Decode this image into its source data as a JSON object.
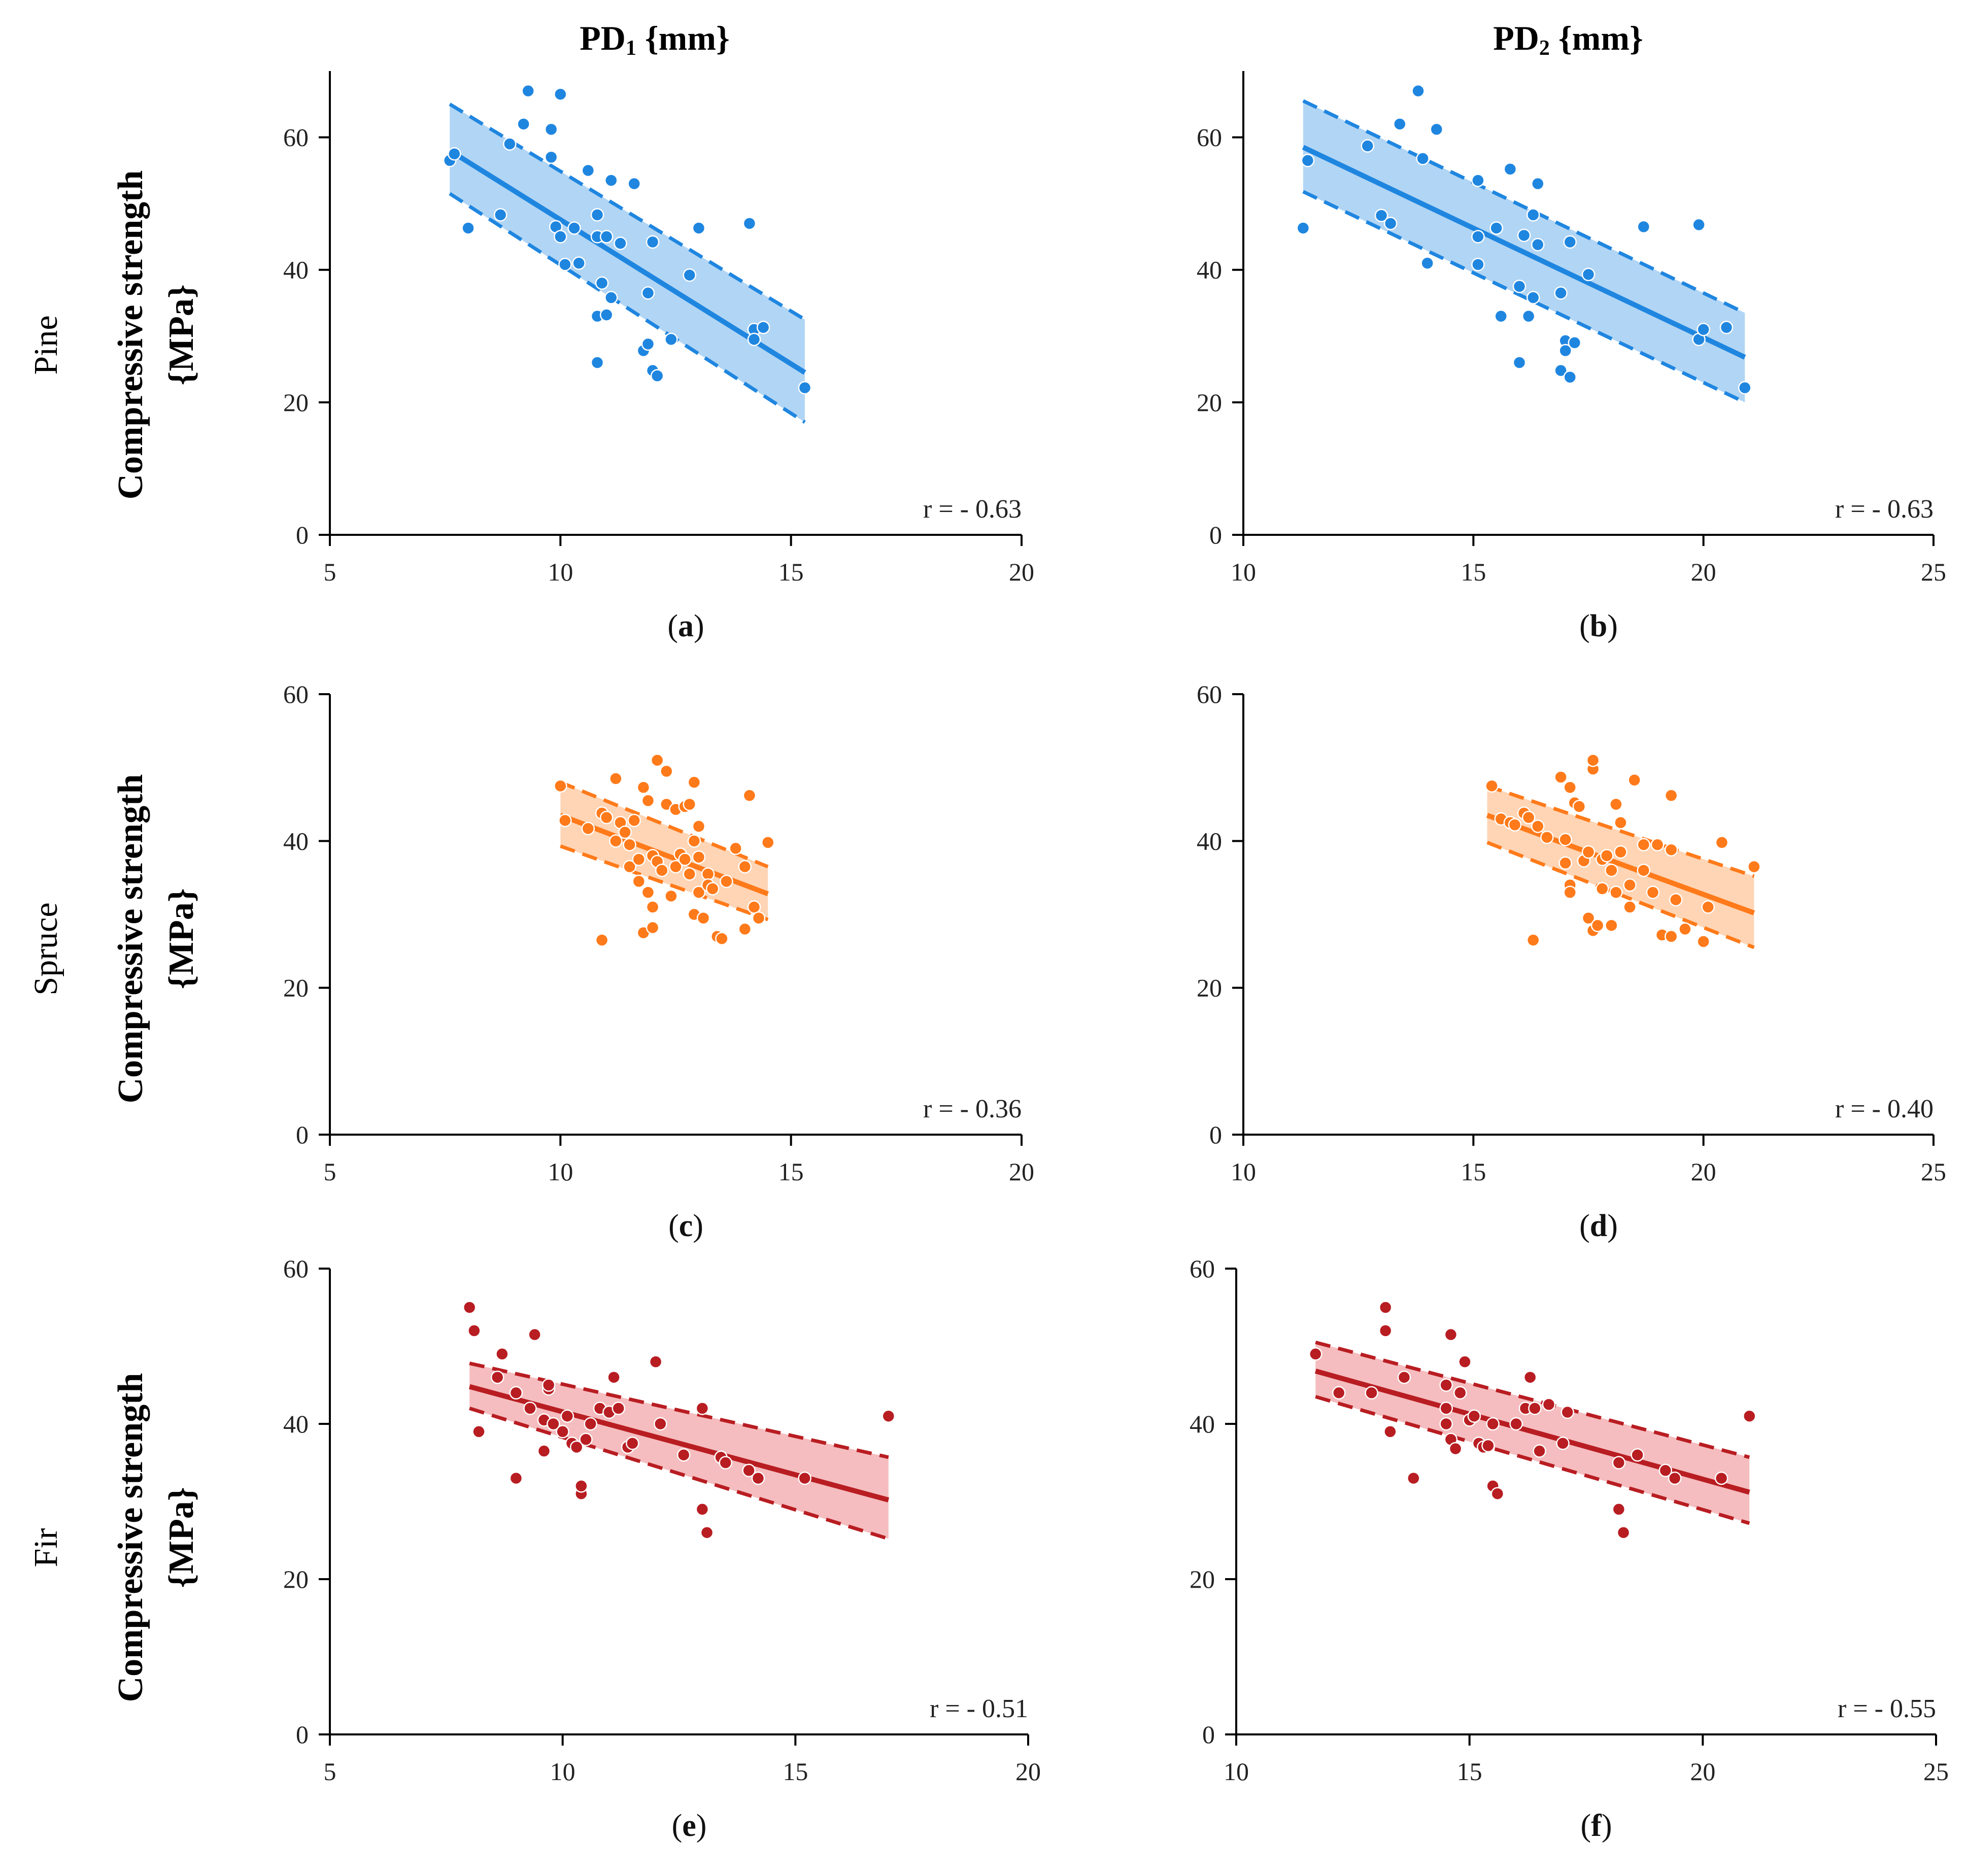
{
  "figure": {
    "column_titles": [
      {
        "base": "PD",
        "sub": "1",
        "unit": " {mm}"
      },
      {
        "base": "PD",
        "sub": "2",
        "unit": " {mm}"
      }
    ],
    "row_labels": [
      "Pine",
      "Spruce",
      "Fir"
    ],
    "ylabel_line1": "Compressive strength",
    "ylabel_line2": "{MPa}"
  },
  "colors": {
    "pine": "#1f86e0",
    "pine_band": "#a8d0f3",
    "spruce": "#ff7a1a",
    "spruce_band": "#ffd0ad",
    "fir": "#b81d22",
    "fir_band": "#f4b6b8"
  },
  "chart_data": [
    {
      "id": "a",
      "type": "scatter",
      "species": "Pine",
      "xvar": "PD1",
      "panel_label": {
        "open": "(",
        "letter": "a",
        "close": ")"
      },
      "r_label": "r = - 0.63",
      "xlim": [
        5,
        20
      ],
      "xticks": [
        5,
        10,
        15,
        20
      ],
      "ylim": [
        0,
        70
      ],
      "yticks": [
        0,
        20,
        40,
        60
      ],
      "fit": {
        "x0": 7.6,
        "x1": 15.3,
        "y0": 58,
        "y1": 24.5,
        "u0": 65,
        "u1": 32.5,
        "l0": 51.5,
        "l1": 17
      },
      "points": [
        [
          7.6,
          56.5
        ],
        [
          7.7,
          57.5
        ],
        [
          8,
          46.3
        ],
        [
          8.7,
          48.3
        ],
        [
          8.9,
          59
        ],
        [
          9.2,
          62
        ],
        [
          9.3,
          67
        ],
        [
          9.8,
          61.2
        ],
        [
          9.8,
          57
        ],
        [
          9.9,
          46.5
        ],
        [
          10,
          45
        ],
        [
          10,
          66.5
        ],
        [
          10.1,
          40.8
        ],
        [
          10.3,
          46.3
        ],
        [
          10.4,
          41
        ],
        [
          10.6,
          55
        ],
        [
          10.8,
          48.3
        ],
        [
          10.8,
          45
        ],
        [
          10.8,
          33
        ],
        [
          10.8,
          26
        ],
        [
          10.9,
          38
        ],
        [
          11,
          33.2
        ],
        [
          11,
          45
        ],
        [
          11.1,
          53.5
        ],
        [
          11.1,
          35.8
        ],
        [
          11.3,
          44
        ],
        [
          11.6,
          53
        ],
        [
          11.8,
          27.8
        ],
        [
          11.9,
          28.8
        ],
        [
          11.9,
          36.5
        ],
        [
          12,
          24.8
        ],
        [
          12,
          44.2
        ],
        [
          12.1,
          24
        ],
        [
          12.4,
          29.5
        ],
        [
          12.8,
          39.2
        ],
        [
          13,
          46.3
        ],
        [
          14.1,
          47
        ],
        [
          14.2,
          31
        ],
        [
          14.2,
          29.5
        ],
        [
          14.4,
          31.3
        ],
        [
          15.3,
          22.2
        ]
      ]
    },
    {
      "id": "b",
      "type": "scatter",
      "species": "Pine",
      "xvar": "PD2",
      "panel_label": {
        "open": "(",
        "letter": "b",
        "close": ")"
      },
      "r_label": "r = - 0.63",
      "xlim": [
        10,
        25
      ],
      "xticks": [
        10,
        15,
        20,
        25
      ],
      "ylim": [
        0,
        70
      ],
      "yticks": [
        0,
        20,
        40,
        60
      ],
      "fit": {
        "x0": 11.3,
        "x1": 20.9,
        "y0": 58.5,
        "y1": 26.8,
        "u0": 65.5,
        "u1": 33.5,
        "l0": 51.8,
        "l1": 20
      },
      "points": [
        [
          11.3,
          46.3
        ],
        [
          11.4,
          56.5
        ],
        [
          12.7,
          58.7
        ],
        [
          13,
          48.2
        ],
        [
          13.2,
          47
        ],
        [
          13.4,
          62
        ],
        [
          13.8,
          67
        ],
        [
          13.9,
          56.8
        ],
        [
          14,
          41
        ],
        [
          14.2,
          61.2
        ],
        [
          15.1,
          53.5
        ],
        [
          15.1,
          45
        ],
        [
          15.1,
          40.8
        ],
        [
          15.5,
          46.3
        ],
        [
          15.6,
          33
        ],
        [
          15.8,
          55.2
        ],
        [
          16,
          26
        ],
        [
          16,
          37.5
        ],
        [
          16.1,
          45.2
        ],
        [
          16.2,
          33
        ],
        [
          16.3,
          48.3
        ],
        [
          16.3,
          35.8
        ],
        [
          16.4,
          53
        ],
        [
          16.4,
          43.8
        ],
        [
          16.9,
          24.8
        ],
        [
          16.9,
          36.5
        ],
        [
          17,
          29.3
        ],
        [
          17,
          27.8
        ],
        [
          17.1,
          44.2
        ],
        [
          17.1,
          23.8
        ],
        [
          17.2,
          29
        ],
        [
          17.5,
          39.3
        ],
        [
          18.7,
          46.5
        ],
        [
          19.9,
          29.5
        ],
        [
          19.9,
          46.8
        ],
        [
          20,
          31
        ],
        [
          20.5,
          31.3
        ],
        [
          20.9,
          22.2
        ]
      ]
    },
    {
      "id": "c",
      "type": "scatter",
      "species": "Spruce",
      "xvar": "PD1",
      "panel_label": {
        "open": "(",
        "letter": "c",
        "close": ")"
      },
      "r_label": "r = - 0.36",
      "xlim": [
        5,
        20
      ],
      "xticks": [
        5,
        10,
        15,
        20
      ],
      "ylim": [
        0,
        60
      ],
      "yticks": [
        0,
        20,
        40,
        60
      ],
      "fit": {
        "x0": 10,
        "x1": 14.5,
        "y0": 43.5,
        "y1": 32.8,
        "u0": 48,
        "u1": 36.5,
        "l0": 39.3,
        "l1": 29.3
      },
      "points": [
        [
          10,
          47.5
        ],
        [
          10.1,
          42.8
        ],
        [
          10.6,
          41.7
        ],
        [
          10.9,
          26.5
        ],
        [
          10.9,
          43.8
        ],
        [
          11,
          43.2
        ],
        [
          11.2,
          48.5
        ],
        [
          11.2,
          40
        ],
        [
          11.3,
          42.5
        ],
        [
          11.4,
          41.2
        ],
        [
          11.5,
          39.5
        ],
        [
          11.5,
          36.5
        ],
        [
          11.6,
          42.8
        ],
        [
          11.7,
          34.5
        ],
        [
          11.7,
          37.5
        ],
        [
          11.8,
          27.5
        ],
        [
          11.8,
          47.3
        ],
        [
          11.9,
          45.5
        ],
        [
          11.9,
          33
        ],
        [
          12,
          31
        ],
        [
          12,
          28.2
        ],
        [
          12,
          38
        ],
        [
          12.1,
          51
        ],
        [
          12.1,
          37.2
        ],
        [
          12.2,
          36
        ],
        [
          12.3,
          49.5
        ],
        [
          12.3,
          45
        ],
        [
          12.4,
          32.5
        ],
        [
          12.5,
          44.3
        ],
        [
          12.5,
          36.5
        ],
        [
          12.6,
          38.2
        ],
        [
          12.7,
          37.5
        ],
        [
          12.7,
          44.7
        ],
        [
          12.8,
          45
        ],
        [
          12.8,
          35.5
        ],
        [
          12.9,
          48
        ],
        [
          12.9,
          40
        ],
        [
          12.9,
          30
        ],
        [
          13,
          37.8
        ],
        [
          13,
          33
        ],
        [
          13,
          42
        ],
        [
          13.1,
          29.5
        ],
        [
          13.2,
          35.5
        ],
        [
          13.2,
          34
        ],
        [
          13.3,
          33.5
        ],
        [
          13.4,
          27
        ],
        [
          13.5,
          26.7
        ],
        [
          13.6,
          34.5
        ],
        [
          13.8,
          39
        ],
        [
          14,
          28
        ],
        [
          14,
          36.5
        ],
        [
          14.1,
          46.2
        ],
        [
          14.2,
          31
        ],
        [
          14.3,
          29.5
        ],
        [
          14.5,
          39.8
        ]
      ]
    },
    {
      "id": "d",
      "type": "scatter",
      "species": "Spruce",
      "xvar": "PD2",
      "panel_label": {
        "open": "(",
        "letter": "d",
        "close": ")"
      },
      "r_label": "r = - 0.40",
      "xlim": [
        10,
        25
      ],
      "xticks": [
        10,
        15,
        20,
        25
      ],
      "ylim": [
        0,
        60
      ],
      "yticks": [
        0,
        20,
        40,
        60
      ],
      "fit": {
        "x0": 15.3,
        "x1": 21.1,
        "y0": 43.5,
        "y1": 30.2,
        "u0": 47.5,
        "u1": 35.2,
        "l0": 39.8,
        "l1": 25.5
      },
      "points": [
        [
          15.4,
          47.5
        ],
        [
          15.6,
          43
        ],
        [
          15.8,
          42.5
        ],
        [
          15.9,
          42.2
        ],
        [
          16.1,
          43.8
        ],
        [
          16.2,
          43.2
        ],
        [
          16.3,
          26.5
        ],
        [
          16.4,
          42
        ],
        [
          16.6,
          40.5
        ],
        [
          16.9,
          48.7
        ],
        [
          17,
          40.2
        ],
        [
          17,
          37
        ],
        [
          17.1,
          47.3
        ],
        [
          17.1,
          34
        ],
        [
          17.1,
          33
        ],
        [
          17.2,
          45.2
        ],
        [
          17.3,
          44.7
        ],
        [
          17.4,
          37.3
        ],
        [
          17.5,
          38.5
        ],
        [
          17.5,
          29.5
        ],
        [
          17.6,
          49.8
        ],
        [
          17.6,
          51
        ],
        [
          17.6,
          27.8
        ],
        [
          17.7,
          28.5
        ],
        [
          17.8,
          37.5
        ],
        [
          17.8,
          33.5
        ],
        [
          17.9,
          38
        ],
        [
          18,
          28.5
        ],
        [
          18,
          36
        ],
        [
          18.1,
          45
        ],
        [
          18.1,
          33
        ],
        [
          18.2,
          42.5
        ],
        [
          18.2,
          38.5
        ],
        [
          18.4,
          31
        ],
        [
          18.4,
          34
        ],
        [
          18.5,
          48.3
        ],
        [
          18.7,
          39.5
        ],
        [
          18.7,
          36
        ],
        [
          18.9,
          33
        ],
        [
          19,
          39.5
        ],
        [
          19.1,
          27.2
        ],
        [
          19.3,
          27
        ],
        [
          19.3,
          46.2
        ],
        [
          19.3,
          38.8
        ],
        [
          19.4,
          32
        ],
        [
          19.6,
          28
        ],
        [
          20,
          26.3
        ],
        [
          20.1,
          31
        ],
        [
          20.4,
          39.8
        ],
        [
          21.1,
          36.5
        ]
      ]
    },
    {
      "id": "e",
      "type": "scatter",
      "species": "Fir",
      "xvar": "PD1",
      "panel_label": {
        "open": "(",
        "letter": "e",
        "close": ")"
      },
      "r_label": "r = - 0.51",
      "xlim": [
        5,
        20
      ],
      "xticks": [
        5,
        10,
        15,
        20
      ],
      "ylim": [
        0,
        60
      ],
      "yticks": [
        0,
        20,
        40,
        60
      ],
      "fit": {
        "x0": 8,
        "x1": 17,
        "y0": 44.8,
        "y1": 30.2,
        "u0": 47.8,
        "u1": 35.7,
        "l0": 42,
        "l1": 25.2
      },
      "points": [
        [
          8,
          55
        ],
        [
          8.1,
          52
        ],
        [
          8.2,
          39
        ],
        [
          8.6,
          46
        ],
        [
          8.7,
          49
        ],
        [
          9,
          44
        ],
        [
          9,
          33
        ],
        [
          9.3,
          42
        ],
        [
          9.4,
          51.5
        ],
        [
          9.6,
          40.5
        ],
        [
          9.6,
          36.5
        ],
        [
          9.7,
          44.5
        ],
        [
          9.7,
          45
        ],
        [
          9.8,
          40
        ],
        [
          10,
          39
        ],
        [
          10.1,
          41
        ],
        [
          10.2,
          37.5
        ],
        [
          10.3,
          37
        ],
        [
          10.4,
          31
        ],
        [
          10.4,
          32
        ],
        [
          10.5,
          38
        ],
        [
          10.6,
          40
        ],
        [
          10.8,
          42
        ],
        [
          11,
          41.5
        ],
        [
          11.1,
          46
        ],
        [
          11.2,
          42
        ],
        [
          11.4,
          37
        ],
        [
          11.5,
          37.5
        ],
        [
          12,
          48
        ],
        [
          12.1,
          40
        ],
        [
          12.6,
          36
        ],
        [
          13,
          29
        ],
        [
          13,
          42
        ],
        [
          13.1,
          26
        ],
        [
          13.4,
          35.7
        ],
        [
          13.5,
          35
        ],
        [
          14,
          34
        ],
        [
          14.2,
          33
        ],
        [
          15.2,
          33
        ],
        [
          17,
          41
        ]
      ]
    },
    {
      "id": "f",
      "type": "scatter",
      "species": "Fir",
      "xvar": "PD2",
      "panel_label": {
        "open": "(",
        "letter": "f",
        "close": ")"
      },
      "r_label": "r = - 0.55",
      "xlim": [
        10,
        25
      ],
      "xticks": [
        10,
        15,
        20,
        25
      ],
      "ylim": [
        0,
        60
      ],
      "yticks": [
        0,
        20,
        40,
        60
      ],
      "fit": {
        "x0": 11.7,
        "x1": 21,
        "y0": 46.8,
        "y1": 31.2,
        "u0": 50.5,
        "u1": 35.7,
        "l0": 43.5,
        "l1": 27.2
      },
      "points": [
        [
          11.7,
          49
        ],
        [
          12.2,
          44
        ],
        [
          12.9,
          44
        ],
        [
          13.2,
          55
        ],
        [
          13.2,
          52
        ],
        [
          13.3,
          39
        ],
        [
          13.6,
          46
        ],
        [
          13.8,
          33
        ],
        [
          14.5,
          45
        ],
        [
          14.5,
          42
        ],
        [
          14.5,
          40
        ],
        [
          14.6,
          51.5
        ],
        [
          14.6,
          38
        ],
        [
          14.7,
          36.8
        ],
        [
          14.8,
          44
        ],
        [
          14.9,
          48
        ],
        [
          15,
          40.5
        ],
        [
          15.1,
          41
        ],
        [
          15.2,
          37.5
        ],
        [
          15.3,
          37
        ],
        [
          15.4,
          37.2
        ],
        [
          15.5,
          32
        ],
        [
          15.5,
          40
        ],
        [
          15.6,
          31
        ],
        [
          16,
          40
        ],
        [
          16.2,
          42
        ],
        [
          16.3,
          46
        ],
        [
          16.4,
          42
        ],
        [
          16.5,
          36.5
        ],
        [
          16.7,
          42.5
        ],
        [
          17,
          37.5
        ],
        [
          17.1,
          41.5
        ],
        [
          18.2,
          29
        ],
        [
          18.2,
          35
        ],
        [
          18.3,
          26
        ],
        [
          18.6,
          36
        ],
        [
          19.2,
          34
        ],
        [
          19.4,
          33
        ],
        [
          20.4,
          33
        ],
        [
          21,
          41
        ]
      ]
    }
  ]
}
